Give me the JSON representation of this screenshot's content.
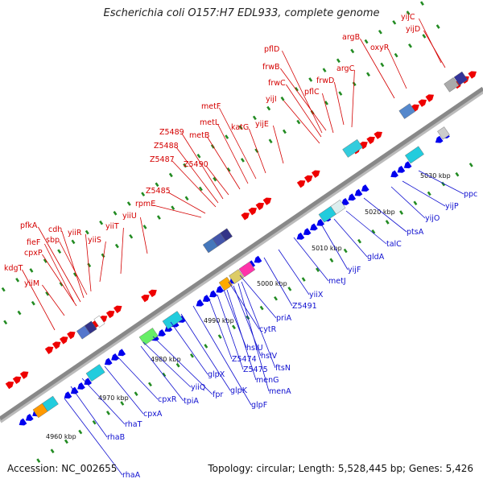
{
  "title": "Escherichia coli O157:H7 EDL933, complete genome",
  "footer": {
    "accession": "Accession: NC_002655",
    "summary": "Topology: circular; Length: 5,528,445 bp; Genes: 5,426"
  },
  "colors": {
    "forward_label": "#d40000",
    "reverse_label": "#1010d0",
    "forward_arrow": "#ee0000",
    "reverse_arrow": "#0000ee",
    "backbone": "#888888",
    "tick": "#228b22"
  },
  "ticks": [
    {
      "label": "4960 kbp"
    },
    {
      "label": "4970 kbp"
    },
    {
      "label": "4980 kbp"
    },
    {
      "label": "4990 kbp"
    },
    {
      "label": "5000 kbp"
    },
    {
      "label": "5010 kbp"
    },
    {
      "label": "5020 kbp"
    },
    {
      "label": "5030 kbp"
    }
  ],
  "forward_genes": [
    {
      "name": "yijC"
    },
    {
      "name": "yijD"
    },
    {
      "name": "argB"
    },
    {
      "name": "oxyR"
    },
    {
      "name": "pflD"
    },
    {
      "name": "argC"
    },
    {
      "name": "frwB"
    },
    {
      "name": "frwD"
    },
    {
      "name": "frwC"
    },
    {
      "name": "pflC"
    },
    {
      "name": "yijI"
    },
    {
      "name": "metF"
    },
    {
      "name": "katG"
    },
    {
      "name": "yijE"
    },
    {
      "name": "metL"
    },
    {
      "name": "Z5489"
    },
    {
      "name": "metB"
    },
    {
      "name": "Z5488"
    },
    {
      "name": "Z5487"
    },
    {
      "name": "Z5490"
    },
    {
      "name": "Z5485"
    },
    {
      "name": "rpmE"
    },
    {
      "name": "yiiU"
    },
    {
      "name": "pfkA"
    },
    {
      "name": "cdh"
    },
    {
      "name": "yiiR"
    },
    {
      "name": "yiiT"
    },
    {
      "name": "fieF"
    },
    {
      "name": "sbp"
    },
    {
      "name": "yiiS"
    },
    {
      "name": "cpxP"
    },
    {
      "name": "kdgT"
    },
    {
      "name": "yiiM"
    }
  ],
  "reverse_genes": [
    {
      "name": "ppc"
    },
    {
      "name": "yijP"
    },
    {
      "name": "yijO"
    },
    {
      "name": "ptsA"
    },
    {
      "name": "talC"
    },
    {
      "name": "gldA"
    },
    {
      "name": "yijF"
    },
    {
      "name": "metJ"
    },
    {
      "name": "yiiX"
    },
    {
      "name": "Z5491"
    },
    {
      "name": "priA"
    },
    {
      "name": "cytR"
    },
    {
      "name": "hslU"
    },
    {
      "name": "hslV"
    },
    {
      "name": "ftsN"
    },
    {
      "name": "Z5474"
    },
    {
      "name": "Z5475"
    },
    {
      "name": "menG"
    },
    {
      "name": "menA"
    },
    {
      "name": "glpX"
    },
    {
      "name": "glpK"
    },
    {
      "name": "glpF"
    },
    {
      "name": "yiiQ"
    },
    {
      "name": "fpr"
    },
    {
      "name": "tpiA"
    },
    {
      "name": "cpxR"
    },
    {
      "name": "cpxA"
    },
    {
      "name": "rhaT"
    },
    {
      "name": "rhaB"
    },
    {
      "name": "rhaA"
    }
  ]
}
